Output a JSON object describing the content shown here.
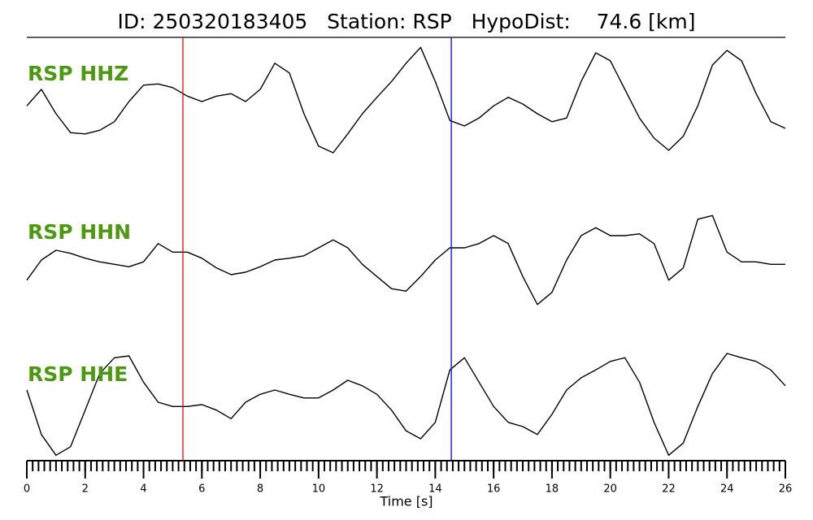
{
  "chart_data": {
    "type": "line",
    "title": "ID: 250320183405   Station: RSP   HypoDist:    74.6 [km]",
    "xlabel": "Time [s]",
    "xlim": [
      0,
      26
    ],
    "xticks": [
      0,
      2,
      4,
      6,
      8,
      10,
      12,
      14,
      16,
      18,
      20,
      22,
      24,
      26
    ],
    "minor_tick_step": 0.2,
    "ylim": [
      -1,
      1
    ],
    "label_color": "#4b9a0e",
    "x": [
      0,
      0.5,
      1,
      1.5,
      2,
      2.5,
      3,
      3.5,
      4,
      4.5,
      5,
      5.5,
      6,
      6.5,
      7,
      7.5,
      8,
      8.5,
      9,
      9.5,
      10,
      10.5,
      11,
      11.5,
      12,
      12.5,
      13,
      13.5,
      14,
      14.5,
      15,
      15.5,
      16,
      16.5,
      17,
      17.5,
      18,
      18.5,
      19,
      19.5,
      20,
      20.5,
      21,
      21.5,
      22,
      22.5,
      23,
      23.5,
      24,
      24.5,
      25,
      25.5,
      26
    ],
    "series": [
      {
        "name": "RSP HHZ",
        "color": "#000000",
        "values": [
          -0.07,
          0.2,
          -0.2,
          -0.51,
          -0.53,
          -0.47,
          -0.33,
          0,
          0.27,
          0.29,
          0.23,
          0.09,
          0,
          0.09,
          0.13,
          0,
          0.2,
          0.63,
          0.47,
          -0.2,
          -0.73,
          -0.84,
          -0.53,
          -0.2,
          0.07,
          0.33,
          0.63,
          0.89,
          0.33,
          -0.31,
          -0.4,
          -0.27,
          -0.07,
          0.07,
          -0.04,
          -0.2,
          -0.33,
          -0.27,
          0.33,
          0.8,
          0.67,
          0.2,
          -0.27,
          -0.6,
          -0.8,
          -0.57,
          -0.07,
          0.6,
          0.84,
          0.67,
          0.13,
          -0.33,
          -0.44
        ]
      },
      {
        "name": "RSP HHN",
        "color": "#000000",
        "values": [
          -0.33,
          0,
          0.16,
          0.11,
          0.03,
          -0.03,
          -0.07,
          -0.11,
          -0.03,
          0.27,
          0.13,
          0.13,
          0.03,
          -0.13,
          -0.24,
          -0.2,
          -0.11,
          0,
          0.03,
          0.07,
          0.2,
          0.33,
          0.2,
          -0.07,
          -0.27,
          -0.47,
          -0.51,
          -0.27,
          0,
          0.2,
          0.2,
          0.27,
          0.4,
          0.27,
          -0.27,
          -0.73,
          -0.53,
          0,
          0.4,
          0.53,
          0.4,
          0.4,
          0.43,
          0.27,
          -0.33,
          -0.13,
          0.67,
          0.73,
          0.13,
          -0.03,
          -0.03,
          -0.07,
          -0.07
        ]
      },
      {
        "name": "RSP HHE",
        "color": "#000000",
        "values": [
          0.2,
          -0.53,
          -0.87,
          -0.73,
          -0.13,
          0.47,
          0.73,
          0.76,
          0.33,
          0,
          -0.07,
          -0.07,
          -0.04,
          -0.13,
          -0.27,
          0,
          0.13,
          0.2,
          0.13,
          0.07,
          0.07,
          0.2,
          0.36,
          0.27,
          0.13,
          -0.13,
          -0.47,
          -0.6,
          -0.33,
          0.53,
          0.73,
          0.33,
          -0.07,
          -0.33,
          -0.4,
          -0.53,
          -0.2,
          0.2,
          0.4,
          0.53,
          0.67,
          0.73,
          0.33,
          -0.33,
          -0.87,
          -0.67,
          -0.07,
          0.47,
          0.8,
          0.73,
          0.67,
          0.53,
          0.27
        ]
      }
    ],
    "picks": [
      {
        "time": 5.35,
        "color": "#ff0000"
      },
      {
        "time": 14.55,
        "color": "#0000ff"
      }
    ]
  }
}
